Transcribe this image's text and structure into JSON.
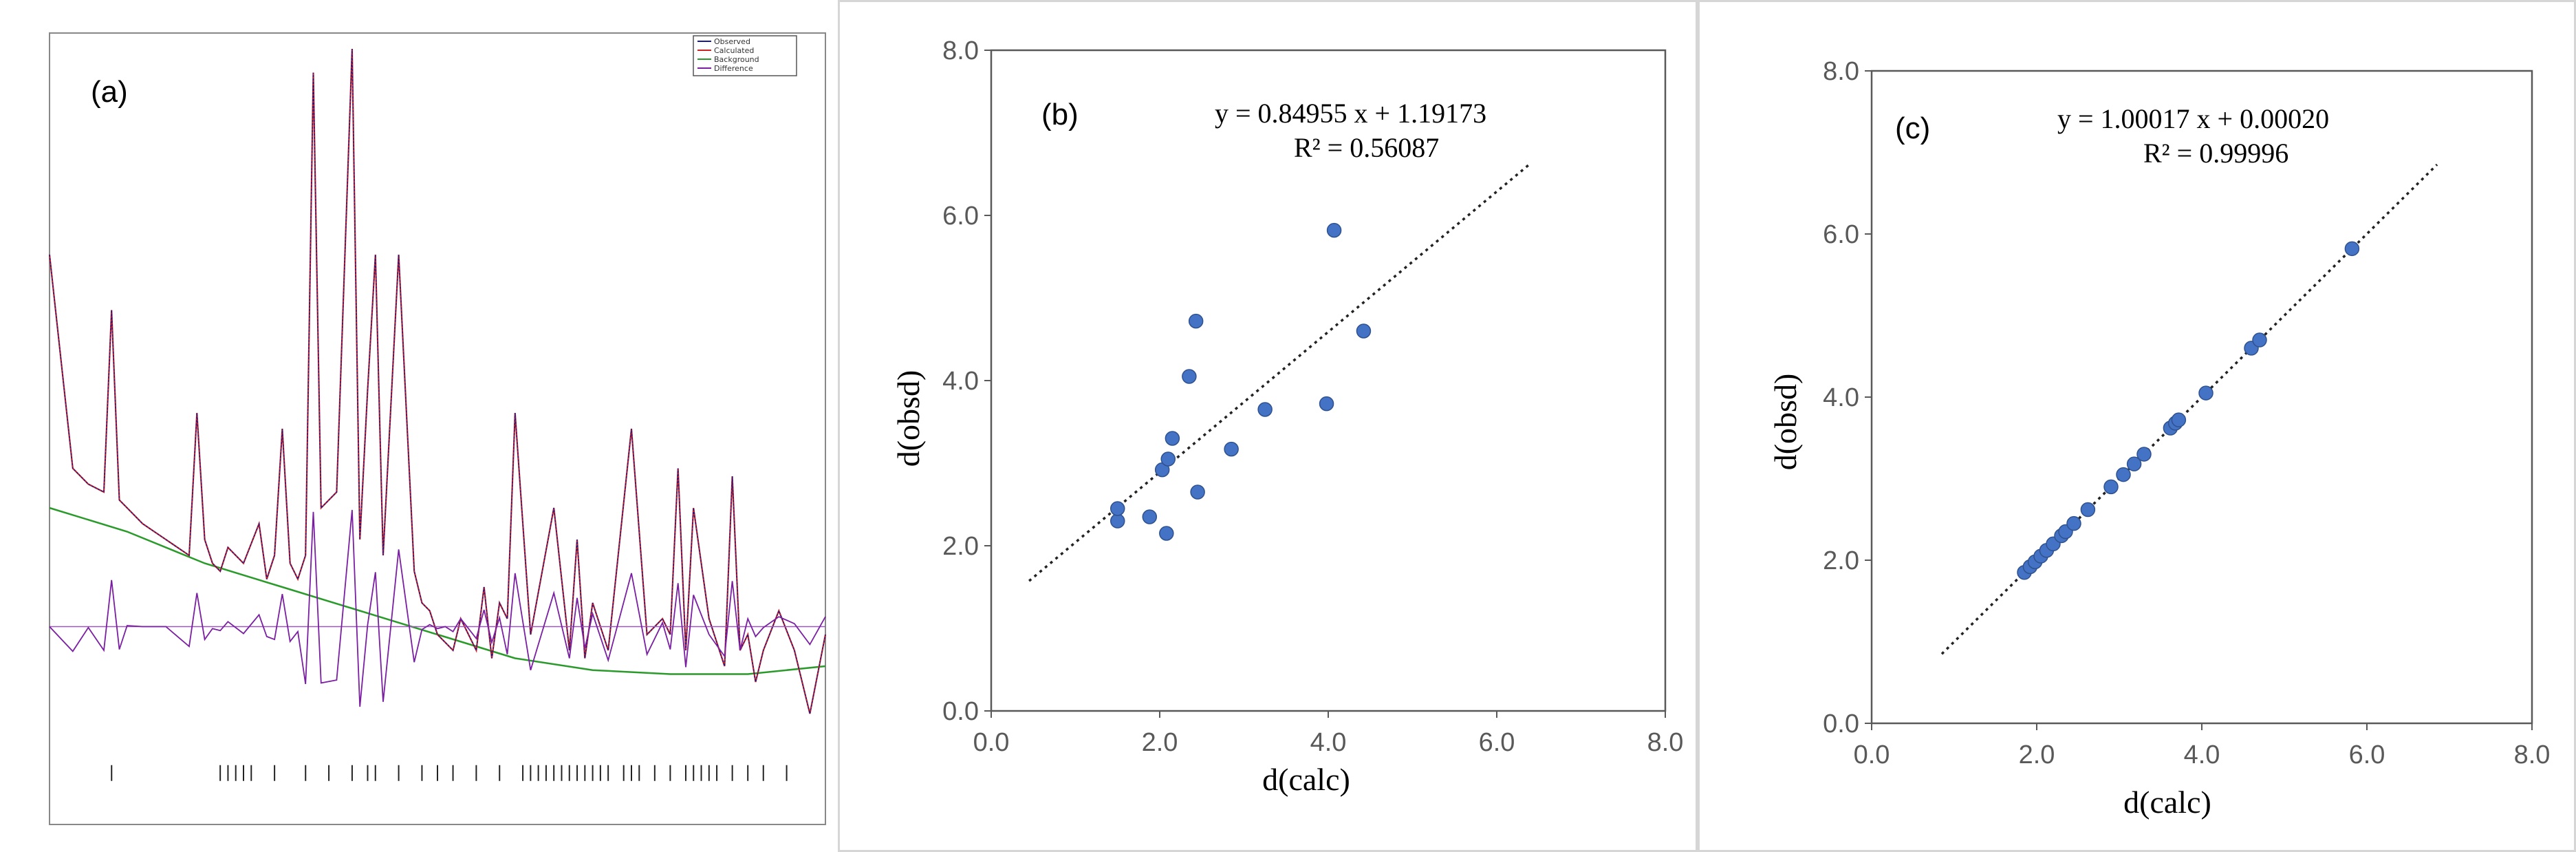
{
  "chart_data": [
    {
      "type": "line",
      "panel_label": "(a)",
      "legend": [
        "Observed",
        "Calculated",
        "Background",
        "Difference"
      ],
      "series_colors": {
        "Observed": "#1a1a8c",
        "Calculated": "#cc2222",
        "Background": "#2a9a2a",
        "Difference": "#7a1fa2"
      },
      "axis_ticks_visible": false,
      "series": [
        {
          "name": "Observed",
          "x": [
            0,
            3,
            5,
            7,
            8,
            9,
            10,
            12,
            15,
            18,
            19,
            20,
            21,
            22,
            23,
            25,
            27,
            28,
            29,
            30,
            31,
            32,
            33,
            34,
            35,
            37,
            39,
            40,
            41,
            42,
            43,
            45,
            47,
            48,
            49,
            50,
            51,
            52,
            53,
            55,
            56,
            57,
            58,
            59,
            60,
            62,
            65,
            67,
            68,
            69,
            70,
            72,
            75,
            77,
            79,
            80,
            81,
            82,
            83,
            85,
            87,
            88,
            89,
            90,
            91,
            92,
            94,
            96,
            98,
            100
          ],
          "y": [
            0.72,
            0.45,
            0.43,
            0.42,
            0.65,
            0.41,
            0.4,
            0.38,
            0.36,
            0.34,
            0.52,
            0.36,
            0.33,
            0.32,
            0.35,
            0.33,
            0.38,
            0.31,
            0.34,
            0.5,
            0.33,
            0.31,
            0.34,
            0.95,
            0.4,
            0.42,
            0.98,
            0.36,
            0.55,
            0.72,
            0.34,
            0.72,
            0.32,
            0.28,
            0.27,
            0.24,
            0.23,
            0.22,
            0.26,
            0.22,
            0.3,
            0.21,
            0.28,
            0.26,
            0.52,
            0.24,
            0.4,
            0.22,
            0.36,
            0.21,
            0.28,
            0.22,
            0.5,
            0.24,
            0.26,
            0.24,
            0.45,
            0.22,
            0.4,
            0.26,
            0.2,
            0.44,
            0.22,
            0.24,
            0.18,
            0.22,
            0.27,
            0.22,
            0.14,
            0.24
          ]
        },
        {
          "name": "Background",
          "x": [
            0,
            10,
            20,
            30,
            40,
            50,
            60,
            70,
            80,
            90,
            100
          ],
          "y": [
            0.4,
            0.37,
            0.33,
            0.3,
            0.27,
            0.24,
            0.21,
            0.195,
            0.19,
            0.19,
            0.2
          ]
        }
      ],
      "difference_baseline": 0.5,
      "reflection_markers_x": [
        8,
        22,
        23,
        24,
        25,
        26,
        29,
        33,
        36,
        39,
        41,
        42,
        45,
        48,
        50,
        52,
        55,
        58,
        61,
        62,
        63,
        64,
        65,
        66,
        67,
        68,
        69,
        70,
        71,
        72,
        74,
        75,
        76,
        78,
        80,
        82,
        83,
        84,
        85,
        86,
        88,
        90,
        92,
        95
      ]
    },
    {
      "type": "scatter",
      "panel_label": "(b)",
      "xlabel": "d(calc)",
      "ylabel": "d(obsd)",
      "xlim": [
        0,
        8
      ],
      "ylim": [
        0,
        8
      ],
      "xticks": [
        "0.0",
        "2.0",
        "4.0",
        "6.0",
        "8.0"
      ],
      "yticks": [
        "0.0",
        "2.0",
        "4.0",
        "6.0",
        "8.0"
      ],
      "equation": "y = 0.84955  x + 1.19173",
      "r2": "R² = 0.56087",
      "trendline": {
        "slope": 0.84955,
        "intercept": 1.19173,
        "x_range": [
          0.45,
          6.4
        ]
      },
      "point_color": "#4472c4",
      "points": [
        [
          1.5,
          2.3
        ],
        [
          1.5,
          2.45
        ],
        [
          1.88,
          2.35
        ],
        [
          2.03,
          2.92
        ],
        [
          2.08,
          2.15
        ],
        [
          2.1,
          3.05
        ],
        [
          2.15,
          3.3
        ],
        [
          2.35,
          4.05
        ],
        [
          2.43,
          4.72
        ],
        [
          2.45,
          2.65
        ],
        [
          2.85,
          3.17
        ],
        [
          3.25,
          3.65
        ],
        [
          3.98,
          3.72
        ],
        [
          4.07,
          5.82
        ],
        [
          4.42,
          4.6
        ]
      ]
    },
    {
      "type": "scatter",
      "panel_label": "(c)",
      "xlabel": "d(calc)",
      "ylabel": "d(obsd)",
      "xlim": [
        0,
        8
      ],
      "ylim": [
        0,
        8
      ],
      "xticks": [
        "0.0",
        "2.0",
        "4.0",
        "6.0",
        "8.0"
      ],
      "yticks": [
        "0.0",
        "2.0",
        "4.0",
        "6.0",
        "8.0"
      ],
      "equation": "y = 1.00017  x + 0.00020",
      "r2": "R² = 0.99996",
      "trendline": {
        "slope": 1.00017,
        "intercept": 0.0002,
        "x_range": [
          0.85,
          6.85
        ]
      },
      "point_color": "#4472c4",
      "points": [
        [
          1.85,
          1.85
        ],
        [
          1.92,
          1.92
        ],
        [
          1.98,
          1.98
        ],
        [
          2.05,
          2.05
        ],
        [
          2.12,
          2.12
        ],
        [
          2.2,
          2.2
        ],
        [
          2.3,
          2.3
        ],
        [
          2.35,
          2.35
        ],
        [
          2.45,
          2.45
        ],
        [
          2.62,
          2.62
        ],
        [
          2.9,
          2.9
        ],
        [
          3.05,
          3.05
        ],
        [
          3.18,
          3.18
        ],
        [
          3.3,
          3.3
        ],
        [
          3.62,
          3.62
        ],
        [
          3.68,
          3.68
        ],
        [
          3.72,
          3.72
        ],
        [
          4.05,
          4.05
        ],
        [
          4.6,
          4.6
        ],
        [
          4.7,
          4.7
        ],
        [
          5.82,
          5.82
        ]
      ]
    }
  ]
}
